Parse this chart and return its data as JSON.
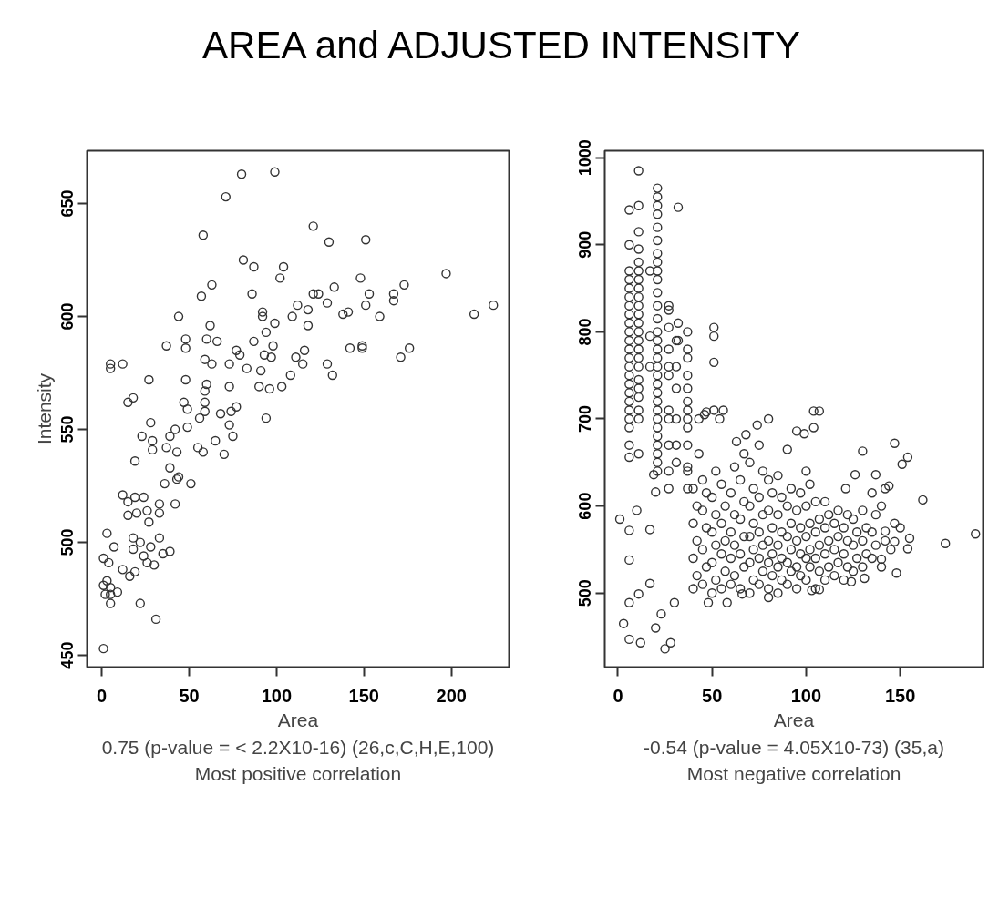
{
  "chart_data": [
    {
      "type": "scatter",
      "title": "AREA and ADJUSTED INTENSITY",
      "xlabel": "Area",
      "ylabel": "Intensity",
      "color": "#333333",
      "marker": "circle",
      "grid": false,
      "xlim": [
        -8.4,
        233
      ],
      "ylim": [
        444.8,
        673.4
      ],
      "xticks": [
        0,
        50,
        100,
        150,
        200
      ],
      "yticks": [
        450,
        500,
        550,
        600,
        650
      ],
      "annotations": [
        "0.75 (p-value = < 2.2X10-16) (26,c,C,H,E,100)",
        "Most positive correlation"
      ],
      "x": [
        80,
        99,
        71,
        58,
        121,
        130,
        151,
        197,
        213,
        224,
        81,
        87,
        104,
        102,
        148,
        63,
        57,
        86,
        133,
        121,
        124,
        129,
        153,
        151,
        167,
        173,
        167,
        112,
        118,
        109,
        118,
        138,
        141,
        159,
        92,
        92,
        99,
        44,
        62,
        60,
        66,
        48,
        48,
        37,
        77,
        87,
        94,
        98,
        93,
        97,
        142,
        149,
        149,
        176,
        171,
        111,
        116,
        115,
        129,
        132,
        108,
        103,
        96,
        90,
        91,
        83,
        79,
        73,
        59,
        63,
        5,
        5,
        12,
        27,
        48,
        60,
        73,
        77,
        74,
        68,
        59,
        59,
        59,
        47,
        49,
        56,
        49,
        94,
        15,
        18,
        28,
        23,
        29,
        29,
        37,
        39,
        42,
        43,
        19,
        73,
        75,
        65,
        55,
        58,
        70,
        39,
        36,
        43,
        44,
        51,
        42,
        33,
        33,
        12,
        15,
        19,
        24,
        15,
        20,
        26,
        27,
        3,
        7,
        1,
        4,
        18,
        22,
        18,
        33,
        28,
        24,
        26,
        30,
        35,
        39,
        12,
        16,
        19,
        1,
        3,
        5,
        2,
        5,
        9,
        5,
        22,
        31,
        1
      ],
      "values": [
        663,
        664,
        653,
        636,
        640,
        633,
        634,
        619,
        601,
        605,
        625,
        622,
        622,
        617,
        617,
        614,
        609,
        610,
        613,
        610,
        610,
        606,
        610,
        605,
        610,
        614,
        607,
        605,
        603,
        600,
        596,
        601,
        602,
        600,
        602,
        600,
        597,
        600,
        596,
        590,
        589,
        590,
        586,
        587,
        585,
        589,
        593,
        587,
        583,
        582,
        586,
        587,
        586,
        586,
        582,
        582,
        585,
        579,
        579,
        574,
        574,
        569,
        568,
        569,
        576,
        577,
        583,
        579,
        581,
        579,
        579,
        577,
        579,
        572,
        572,
        570,
        569,
        560,
        558,
        557,
        558,
        567,
        562,
        562,
        559,
        555,
        551,
        555,
        562,
        564,
        553,
        547,
        545,
        541,
        542,
        547,
        550,
        540,
        536,
        552,
        547,
        545,
        542,
        540,
        539,
        533,
        526,
        528,
        529,
        526,
        517,
        517,
        513,
        521,
        518,
        520,
        520,
        512,
        513,
        514,
        509,
        504,
        498,
        493,
        491,
        502,
        500,
        497,
        502,
        498,
        494,
        491,
        490,
        495,
        496,
        488,
        485,
        487,
        481,
        483,
        480,
        477,
        477,
        478,
        473,
        473,
        466,
        453
      ]
    },
    {
      "type": "scatter",
      "xlabel": "Area",
      "color": "#333333",
      "marker": "circle",
      "grid": false,
      "xlim": [
        -7,
        194
      ],
      "ylim": [
        415,
        1008
      ],
      "xticks": [
        0,
        50,
        100,
        150
      ],
      "yticks": [
        500,
        600,
        700,
        800,
        900,
        1000
      ],
      "annotations": [
        "-0.54 (p-value = 4.05X10-73) (35,a)",
        "Most negative correlation"
      ],
      "x": [
        6,
        6,
        6,
        6,
        6,
        6,
        6,
        6,
        6,
        6,
        6,
        6,
        6,
        6,
        6,
        6,
        6,
        6,
        6,
        6,
        6,
        6,
        6,
        11,
        11,
        11,
        11,
        11,
        11,
        11,
        11,
        11,
        11,
        11,
        11,
        11,
        11,
        11,
        11,
        11,
        11,
        11,
        11,
        11,
        11,
        11,
        21,
        21,
        21,
        21,
        21,
        21,
        21,
        21,
        21,
        21,
        21,
        21,
        21,
        21,
        21,
        21,
        21,
        21,
        21,
        21,
        21,
        21,
        21,
        21,
        21,
        21,
        21,
        21,
        21,
        21,
        17,
        17,
        17,
        32,
        32,
        32,
        27,
        27,
        27,
        27,
        27,
        27,
        27,
        27,
        27,
        27,
        27,
        31,
        31,
        31,
        31,
        31,
        31,
        37,
        37,
        37,
        37,
        37,
        37,
        37,
        37,
        37,
        37,
        37,
        37,
        37,
        51,
        51,
        51,
        51,
        43,
        43,
        46,
        47,
        54,
        56,
        80,
        74,
        95,
        99,
        104,
        104,
        107,
        90,
        63,
        68,
        147,
        130,
        154,
        151,
        162,
        174,
        190,
        137,
        144,
        126,
        121,
        148,
        140,
        154,
        155,
        150,
        147,
        142,
        131,
        124,
        3,
        6,
        12,
        25,
        28,
        20,
        23,
        6,
        11,
        17,
        1,
        6,
        10,
        6,
        17,
        20,
        19,
        30,
        48,
        58,
        80,
        103,
        107,
        66,
        40,
        42,
        40,
        42,
        40,
        42,
        40,
        45,
        47,
        45,
        47,
        45,
        47,
        45,
        50,
        52,
        50,
        52,
        50,
        52,
        50,
        52,
        55,
        57,
        55,
        57,
        55,
        57,
        55,
        60,
        62,
        60,
        62,
        60,
        62,
        60,
        62,
        65,
        67,
        65,
        67,
        65,
        67,
        65,
        67,
        70,
        72,
        70,
        72,
        70,
        72,
        70,
        72,
        70,
        75,
        77,
        75,
        77,
        75,
        77,
        75,
        77,
        75,
        80,
        82,
        80,
        82,
        80,
        82,
        80,
        82,
        80,
        85,
        87,
        85,
        87,
        85,
        87,
        85,
        87,
        85,
        90,
        92,
        90,
        92,
        90,
        92,
        90,
        92,
        95,
        97,
        95,
        97,
        95,
        97,
        95,
        97,
        100,
        102,
        100,
        102,
        100,
        102,
        100,
        102,
        100,
        105,
        107,
        105,
        107,
        105,
        107,
        105,
        110,
        112,
        110,
        112,
        110,
        112,
        110,
        115,
        117,
        115,
        117,
        115,
        117,
        120,
        122,
        120,
        122,
        120,
        122,
        125,
        127,
        125,
        127,
        125,
        130,
        132,
        130,
        132,
        130,
        135,
        137,
        135,
        137,
        135,
        140,
        142,
        140,
        142,
        145,
        147
      ],
      "values": [
        940,
        900,
        870,
        860,
        850,
        840,
        830,
        820,
        810,
        800,
        790,
        780,
        770,
        760,
        750,
        740,
        730,
        720,
        710,
        700,
        690,
        670,
        656,
        985,
        945,
        915,
        895,
        880,
        870,
        860,
        850,
        840,
        830,
        820,
        810,
        800,
        790,
        780,
        770,
        760,
        745,
        735,
        725,
        710,
        700,
        660,
        965,
        955,
        945,
        935,
        920,
        905,
        890,
        880,
        870,
        860,
        845,
        830,
        815,
        800,
        790,
        780,
        770,
        760,
        750,
        740,
        730,
        720,
        710,
        700,
        690,
        680,
        670,
        660,
        650,
        640,
        870,
        795,
        760,
        943,
        810,
        790,
        830,
        825,
        805,
        780,
        760,
        750,
        710,
        700,
        670,
        640,
        620,
        790,
        760,
        735,
        700,
        670,
        650,
        800,
        780,
        770,
        750,
        735,
        720,
        710,
        700,
        690,
        670,
        645,
        640,
        620,
        805,
        795,
        765,
        710,
        700,
        660,
        705,
        708,
        700,
        710,
        700,
        693,
        686,
        683,
        690,
        709,
        709,
        665,
        674,
        682,
        672,
        663,
        656,
        648,
        607,
        557,
        568,
        636,
        623,
        636,
        620,
        523,
        539,
        551,
        563,
        575,
        559,
        571,
        517,
        513,
        465,
        447,
        443,
        436,
        443,
        460,
        476,
        489,
        499,
        511,
        585,
        572,
        595,
        538,
        573,
        616,
        636,
        489,
        489,
        489,
        495,
        503,
        504,
        499,
        505,
        520,
        540,
        560,
        580,
        600,
        620,
        510,
        530,
        550,
        575,
        595,
        615,
        630,
        500,
        515,
        535,
        555,
        570,
        590,
        610,
        640,
        505,
        525,
        545,
        560,
        580,
        600,
        625,
        510,
        520,
        540,
        555,
        570,
        590,
        615,
        645,
        505,
        530,
        545,
        565,
        585,
        605,
        630,
        660,
        500,
        515,
        535,
        550,
        565,
        580,
        600,
        620,
        650,
        510,
        525,
        540,
        555,
        570,
        590,
        610,
        640,
        670,
        505,
        520,
        535,
        545,
        560,
        575,
        595,
        615,
        630,
        500,
        515,
        530,
        540,
        555,
        570,
        590,
        610,
        635,
        510,
        525,
        535,
        550,
        565,
        580,
        600,
        620,
        505,
        520,
        530,
        545,
        560,
        575,
        595,
        615,
        515,
        530,
        540,
        550,
        565,
        580,
        600,
        625,
        640,
        505,
        525,
        540,
        555,
        570,
        585,
        605,
        515,
        530,
        545,
        560,
        575,
        590,
        605,
        520,
        535,
        550,
        565,
        580,
        595,
        515,
        530,
        545,
        560,
        575,
        590,
        525,
        540,
        555,
        570,
        585,
        530,
        545,
        560,
        575,
        595,
        540,
        555,
        570,
        590,
        615,
        530,
        560,
        600,
        620,
        550,
        580
      ]
    }
  ]
}
